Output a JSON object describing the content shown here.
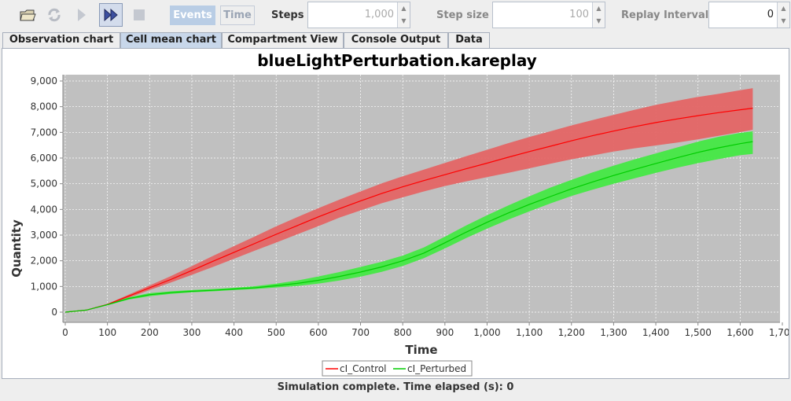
{
  "toolbar": {
    "icons": [
      "open-folder-icon",
      "refresh-icon",
      "play-icon",
      "fast-forward-icon",
      "stop-icon"
    ],
    "events_label": "Events",
    "time_label": "Time",
    "steps_label": "Steps",
    "steps_value": "1,000",
    "step_size_label": "Step size",
    "step_size_value": "100",
    "replay_interval_label": "Replay Interval",
    "replay_interval_value": "0"
  },
  "tabs": [
    "Observation chart",
    "Cell mean chart",
    "Compartment View",
    "Console Output",
    "Data"
  ],
  "active_tab": "Cell mean chart",
  "status_text": "Simulation complete. Time elapsed (s): 0",
  "chart_data": {
    "type": "area",
    "title": "blueLightPerturbation.kareplay",
    "xlabel": "Time",
    "ylabel": "Quantity",
    "xlim": [
      0,
      1700
    ],
    "ylim": [
      0,
      9000
    ],
    "x_ticks": [
      "0",
      "100",
      "200",
      "300",
      "400",
      "500",
      "600",
      "700",
      "800",
      "900",
      "1,000",
      "1,100",
      "1,200",
      "1,300",
      "1,400",
      "1,500",
      "1,600",
      "1,700"
    ],
    "y_ticks": [
      "0",
      "1,000",
      "2,000",
      "3,000",
      "4,000",
      "5,000",
      "6,000",
      "7,000",
      "8,000",
      "9,000"
    ],
    "grid": true,
    "legend": "bottom",
    "series": [
      {
        "name": "cI_Control",
        "color": "#ff0000",
        "band_color": "#e46565",
        "x": [
          0,
          50,
          100,
          150,
          200,
          250,
          300,
          350,
          400,
          450,
          500,
          550,
          600,
          650,
          700,
          750,
          800,
          850,
          900,
          950,
          1000,
          1050,
          1100,
          1150,
          1200,
          1250,
          1300,
          1350,
          1400,
          1450,
          1500,
          1550,
          1600,
          1630
        ],
        "mean": [
          0,
          80,
          300,
          620,
          950,
          1270,
          1620,
          1980,
          2330,
          2680,
          3030,
          3370,
          3710,
          4030,
          4330,
          4620,
          4880,
          5120,
          5350,
          5580,
          5800,
          6030,
          6250,
          6460,
          6670,
          6870,
          7050,
          7220,
          7380,
          7520,
          7650,
          7770,
          7880,
          7940
        ],
        "upper": [
          0,
          85,
          320,
          680,
          1040,
          1400,
          1790,
          2190,
          2570,
          2950,
          3340,
          3700,
          4050,
          4380,
          4700,
          5010,
          5290,
          5550,
          5810,
          6070,
          6320,
          6580,
          6820,
          7040,
          7270,
          7480,
          7680,
          7880,
          8070,
          8230,
          8380,
          8500,
          8640,
          8720
        ],
        "lower": [
          0,
          75,
          280,
          560,
          860,
          1150,
          1450,
          1760,
          2080,
          2400,
          2710,
          3030,
          3350,
          3680,
          3960,
          4240,
          4470,
          4700,
          4910,
          5090,
          5260,
          5420,
          5600,
          5780,
          5950,
          6100,
          6250,
          6380,
          6490,
          6600,
          6730,
          6870,
          7010,
          7100
        ]
      },
      {
        "name": "cI_Perturbed",
        "color": "#00cc00",
        "band_color": "#44e844",
        "x": [
          0,
          50,
          100,
          150,
          200,
          250,
          300,
          350,
          400,
          450,
          500,
          550,
          600,
          650,
          700,
          750,
          800,
          850,
          900,
          950,
          1000,
          1050,
          1100,
          1150,
          1200,
          1250,
          1300,
          1350,
          1400,
          1450,
          1500,
          1550,
          1600,
          1630
        ],
        "mean": [
          0,
          80,
          290,
          530,
          680,
          760,
          810,
          850,
          900,
          950,
          1030,
          1120,
          1240,
          1390,
          1560,
          1760,
          2000,
          2300,
          2700,
          3110,
          3500,
          3860,
          4190,
          4500,
          4800,
          5070,
          5320,
          5560,
          5790,
          6010,
          6220,
          6400,
          6560,
          6640
        ],
        "upper": [
          0,
          85,
          310,
          570,
          740,
          810,
          860,
          900,
          950,
          1010,
          1110,
          1230,
          1390,
          1560,
          1760,
          1960,
          2200,
          2520,
          2940,
          3370,
          3770,
          4150,
          4510,
          4850,
          5150,
          5440,
          5700,
          5950,
          6180,
          6410,
          6640,
          6830,
          6980,
          7040
        ],
        "lower": [
          0,
          75,
          270,
          490,
          620,
          710,
          770,
          810,
          860,
          900,
          960,
          1020,
          1110,
          1230,
          1380,
          1570,
          1800,
          2100,
          2480,
          2880,
          3250,
          3600,
          3920,
          4230,
          4520,
          4770,
          5000,
          5210,
          5420,
          5620,
          5800,
          5960,
          6110,
          6160
        ]
      }
    ]
  }
}
